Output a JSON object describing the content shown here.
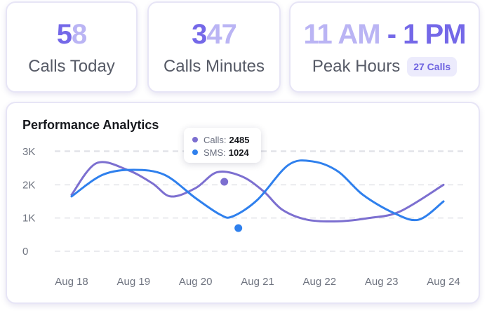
{
  "stats": [
    {
      "value_hi": "5",
      "value_lo": "8",
      "label": "Calls Today"
    },
    {
      "value_hi": "3",
      "value_lo": "47",
      "label": "Calls Minutes"
    },
    {
      "value_hi": "11 AM",
      "value_sep": " - ",
      "value_lo": "1 PM",
      "label": "Peak Hours",
      "badge": "27 Calls"
    }
  ],
  "chart": {
    "title": "Performance Analytics",
    "tooltip": {
      "calls_label": "Calls:",
      "calls_value": "2485",
      "sms_label": "SMS:",
      "sms_value": "1024"
    }
  },
  "colors": {
    "calls": "#7c6fd0",
    "sms": "#2f80ed",
    "accent": "#7468e8"
  },
  "chart_data": {
    "type": "line",
    "x": [
      "Aug 18",
      "Aug 19",
      "Aug 20",
      "Aug 21",
      "Aug 22",
      "Aug 23",
      "Aug 24"
    ],
    "y_ticks": [
      "0",
      "1K",
      "2K",
      "3K"
    ],
    "ylim": [
      0,
      3000
    ],
    "grid": true,
    "series": [
      {
        "name": "Calls",
        "points": [
          [
            0,
            1700
          ],
          [
            0.4,
            2650
          ],
          [
            0.9,
            2450
          ],
          [
            1.3,
            2050
          ],
          [
            1.6,
            1650
          ],
          [
            2.0,
            1900
          ],
          [
            2.35,
            2380
          ],
          [
            2.75,
            2250
          ],
          [
            3.1,
            1800
          ],
          [
            3.4,
            1250
          ],
          [
            3.8,
            950
          ],
          [
            4.3,
            900
          ],
          [
            4.8,
            1000
          ],
          [
            5.3,
            1200
          ],
          [
            6.0,
            2000
          ]
        ]
      },
      {
        "name": "SMS",
        "points": [
          [
            0,
            1650
          ],
          [
            0.5,
            2300
          ],
          [
            1.0,
            2450
          ],
          [
            1.5,
            2300
          ],
          [
            2.0,
            1600
          ],
          [
            2.4,
            1100
          ],
          [
            2.6,
            1050
          ],
          [
            3.0,
            1550
          ],
          [
            3.5,
            2600
          ],
          [
            3.9,
            2700
          ],
          [
            4.3,
            2400
          ],
          [
            4.7,
            1700
          ],
          [
            5.2,
            1150
          ],
          [
            5.6,
            950
          ],
          [
            6.0,
            1500
          ]
        ]
      }
    ],
    "highlight": {
      "x_index": 2.6
    }
  }
}
